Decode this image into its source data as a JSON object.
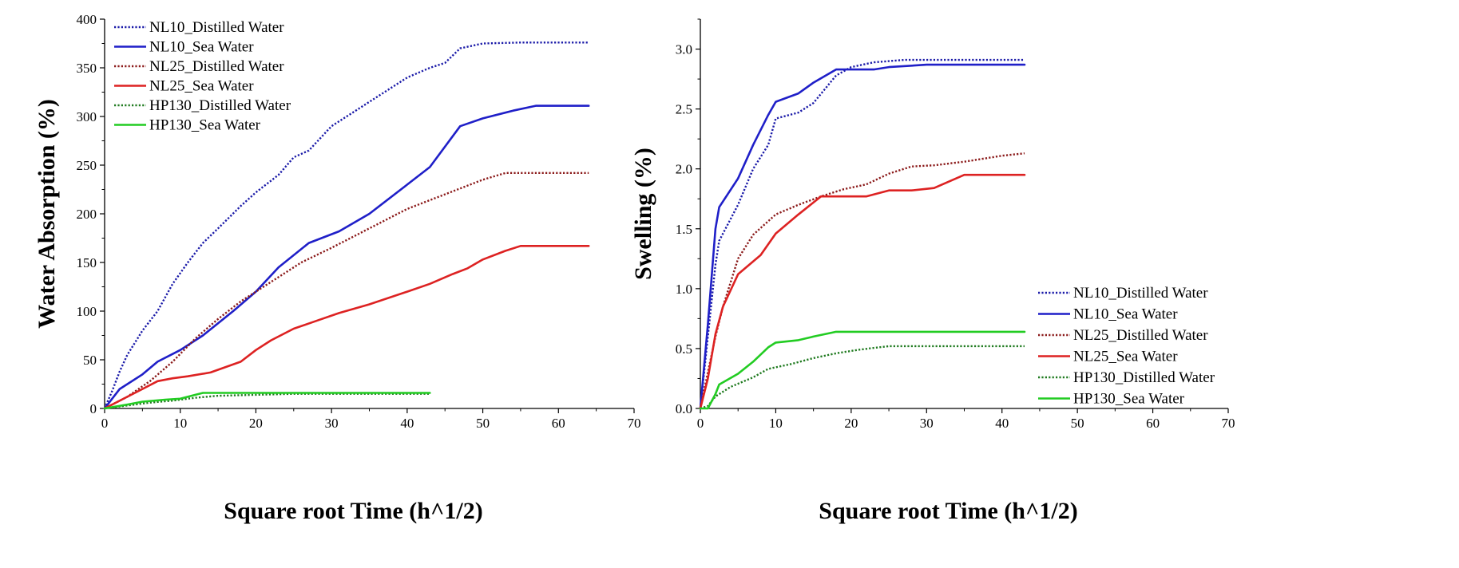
{
  "chart_data": [
    {
      "type": "line",
      "title": "",
      "xlabel": "Square root Time (h^1/2)",
      "ylabel": "Water Absorption (%)",
      "xlim": [
        0,
        70
      ],
      "ylim": [
        0,
        400
      ],
      "xticks": [
        0,
        10,
        20,
        30,
        40,
        50,
        60,
        70
      ],
      "yticks": [
        0,
        50,
        100,
        150,
        200,
        250,
        300,
        350,
        400
      ],
      "grid": false,
      "legend_position": "top-left",
      "series": [
        {
          "name": "NL10_Distilled Water",
          "color": "#1a1aa8",
          "style": "dotted",
          "x": [
            0,
            1,
            2,
            3,
            5,
            7,
            9,
            11,
            13,
            15,
            18,
            20,
            23,
            25,
            27,
            30,
            35,
            40,
            43,
            45,
            47,
            50,
            55,
            60,
            64
          ],
          "y": [
            0,
            18,
            38,
            55,
            80,
            100,
            128,
            150,
            170,
            185,
            208,
            222,
            240,
            258,
            265,
            290,
            315,
            340,
            350,
            355,
            370,
            375,
            376,
            376,
            376
          ]
        },
        {
          "name": "NL10_Sea Water",
          "color": "#1f1fc8",
          "style": "solid",
          "x": [
            0,
            2,
            5,
            7,
            10,
            13,
            17,
            20,
            23,
            27,
            31,
            35,
            40,
            43,
            47,
            50,
            54,
            57,
            60,
            64
          ],
          "y": [
            0,
            20,
            35,
            48,
            60,
            75,
            100,
            120,
            145,
            170,
            182,
            200,
            230,
            248,
            290,
            298,
            306,
            311,
            311,
            311
          ]
        },
        {
          "name": "NL25_Distilled Water",
          "color": "#8b1a1a",
          "style": "dotted",
          "x": [
            0,
            3,
            6,
            9,
            12,
            15,
            18,
            22,
            26,
            30,
            35,
            40,
            45,
            50,
            53,
            57,
            60,
            64
          ],
          "y": [
            0,
            12,
            28,
            48,
            72,
            92,
            110,
            130,
            150,
            165,
            185,
            205,
            220,
            235,
            242,
            242,
            242,
            242
          ]
        },
        {
          "name": "NL25_Sea Water",
          "color": "#dd2222",
          "style": "solid",
          "x": [
            0,
            3,
            5,
            7,
            9,
            11,
            14,
            18,
            20,
            22,
            25,
            28,
            31,
            35,
            40,
            43,
            46,
            48,
            50,
            53,
            55,
            60,
            64
          ],
          "y": [
            0,
            12,
            20,
            28,
            31,
            33,
            37,
            48,
            60,
            70,
            82,
            90,
            98,
            107,
            120,
            128,
            138,
            144,
            153,
            162,
            167,
            167,
            167
          ]
        },
        {
          "name": "HP130_Distilled Water",
          "color": "#1f7a1f",
          "style": "dotted",
          "x": [
            0,
            3,
            6,
            9,
            12,
            15,
            20,
            25,
            30,
            35,
            40,
            43
          ],
          "y": [
            0,
            3,
            6,
            8,
            11,
            13,
            14,
            15,
            15,
            15,
            15,
            15
          ]
        },
        {
          "name": "HP130_Sea Water",
          "color": "#22cc22",
          "style": "solid",
          "x": [
            0,
            3,
            5,
            8,
            10,
            12,
            13,
            15,
            20,
            25,
            30,
            35,
            40,
            43
          ],
          "y": [
            0,
            4,
            7,
            9,
            10,
            14,
            16,
            16,
            16,
            16,
            16,
            16,
            16,
            16
          ]
        }
      ]
    },
    {
      "type": "line",
      "title": "",
      "xlabel": "Square root Time (h^1/2)",
      "ylabel": "Swelling (%)",
      "xlim": [
        0,
        70
      ],
      "ylim": [
        0,
        3.25
      ],
      "xticks": [
        0,
        10,
        20,
        30,
        40,
        50,
        60,
        70
      ],
      "yticks": [
        0.0,
        0.5,
        1.0,
        1.5,
        2.0,
        2.5,
        3.0
      ],
      "ytick_labels": [
        "0.0",
        "0.5",
        "1.0",
        "1.5",
        "2.0",
        "2.5",
        "3.0"
      ],
      "grid": false,
      "legend_position": "bottom-right",
      "series": [
        {
          "name": "NL10_Distilled Water",
          "color": "#1a1aa8",
          "style": "dotted",
          "x": [
            0,
            1,
            2,
            2.5,
            5,
            7,
            9,
            10,
            13,
            15,
            18,
            20,
            23,
            27,
            30,
            35,
            43
          ],
          "y": [
            0,
            0.6,
            1.2,
            1.4,
            1.7,
            2.0,
            2.2,
            2.42,
            2.47,
            2.55,
            2.78,
            2.85,
            2.89,
            2.91,
            2.91,
            2.91,
            2.91
          ]
        },
        {
          "name": "NL10_Sea Water",
          "color": "#1f1fc8",
          "style": "solid",
          "x": [
            0,
            1,
            2,
            2.5,
            5,
            7,
            9,
            10,
            13,
            15,
            18,
            20,
            23,
            25,
            30,
            35,
            43
          ],
          "y": [
            0,
            0.7,
            1.5,
            1.68,
            1.92,
            2.2,
            2.45,
            2.56,
            2.63,
            2.72,
            2.83,
            2.83,
            2.83,
            2.85,
            2.87,
            2.87,
            2.87
          ]
        },
        {
          "name": "NL25_Distilled Water",
          "color": "#8b1a1a",
          "style": "dotted",
          "x": [
            0,
            1,
            2,
            3,
            5,
            7,
            10,
            13,
            16,
            19,
            22,
            25,
            28,
            31,
            35,
            40,
            43
          ],
          "y": [
            0,
            0.3,
            0.6,
            0.85,
            1.25,
            1.45,
            1.62,
            1.7,
            1.77,
            1.83,
            1.87,
            1.96,
            2.02,
            2.03,
            2.06,
            2.11,
            2.13
          ]
        },
        {
          "name": "NL25_Sea Water",
          "color": "#dd2222",
          "style": "solid",
          "x": [
            0,
            1,
            2,
            3,
            5,
            8,
            10,
            13,
            16,
            19,
            22,
            25,
            28,
            31,
            35,
            40,
            43
          ],
          "y": [
            0,
            0.25,
            0.62,
            0.85,
            1.12,
            1.28,
            1.46,
            1.62,
            1.77,
            1.77,
            1.77,
            1.82,
            1.82,
            1.84,
            1.95,
            1.95,
            1.95
          ]
        },
        {
          "name": "HP130_Distilled Water",
          "color": "#1f7a1f",
          "style": "dotted",
          "x": [
            0,
            1,
            2,
            4,
            7,
            9,
            12,
            15,
            18,
            21,
            25,
            30,
            35,
            43
          ],
          "y": [
            0,
            0.02,
            0.1,
            0.18,
            0.26,
            0.33,
            0.37,
            0.42,
            0.46,
            0.49,
            0.52,
            0.52,
            0.52,
            0.52
          ]
        },
        {
          "name": "HP130_Sea Water",
          "color": "#22cc22",
          "style": "solid",
          "x": [
            0,
            1,
            2,
            2.5,
            5,
            7,
            9,
            10,
            13,
            15,
            18,
            20,
            25,
            30,
            43
          ],
          "y": [
            0,
            0.0,
            0.12,
            0.2,
            0.29,
            0.39,
            0.51,
            0.55,
            0.57,
            0.6,
            0.64,
            0.64,
            0.64,
            0.64,
            0.64
          ]
        }
      ]
    }
  ]
}
